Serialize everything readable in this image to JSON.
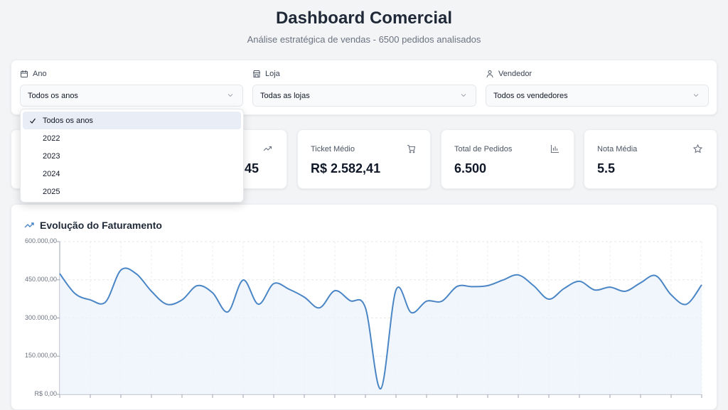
{
  "header": {
    "title": "Dashboard Comercial",
    "subtitle": "Análise estratégica de vendas - 6500 pedidos analisados"
  },
  "filters": [
    {
      "label": "Ano",
      "icon": "calendar-icon",
      "value": "Todos os anos"
    },
    {
      "label": "Loja",
      "icon": "store-icon",
      "value": "Todas as lojas"
    },
    {
      "label": "Vendedor",
      "icon": "user-icon",
      "value": "Todos os vendedores"
    }
  ],
  "year_dropdown": {
    "options": [
      "Todos os anos",
      "2022",
      "2023",
      "2024",
      "2025"
    ],
    "selected": "Todos os anos"
  },
  "kpis": [
    {
      "label": "",
      "value": "",
      "icon": ""
    },
    {
      "label": "",
      "value": "5,45",
      "icon": "trending-up-icon"
    },
    {
      "label": "Ticket Médio",
      "value": "R$ 2.582,41",
      "icon": "cart-icon"
    },
    {
      "label": "Total de Pedidos",
      "value": "6.500",
      "icon": "bar-chart-icon"
    },
    {
      "label": "Nota Média",
      "value": "5.5",
      "icon": "star-icon"
    }
  ],
  "chart": {
    "title": "Evolução do Faturamento",
    "icon": "trending-up-icon"
  },
  "chart_data": {
    "type": "area",
    "title": "Evolução do Faturamento",
    "ylim": [
      0,
      600000
    ],
    "yticks": [
      "R$ 0,00",
      "150.000,00",
      "300.000,00",
      "450.000,00",
      "600.000,00"
    ],
    "grid": true,
    "color": "#4a86c5",
    "values": [
      474000,
      396000,
      371000,
      363000,
      488000,
      474000,
      405000,
      354000,
      371000,
      427000,
      399000,
      324000,
      449000,
      354000,
      435000,
      413000,
      382000,
      340000,
      407000,
      368000,
      340000,
      22000,
      410000,
      321000,
      366000,
      366000,
      424000,
      423000,
      427000,
      449000,
      469000,
      427000,
      374000,
      416000,
      444000,
      410000,
      421000,
      405000,
      438000,
      466000,
      391000,
      354000,
      430000
    ]
  }
}
